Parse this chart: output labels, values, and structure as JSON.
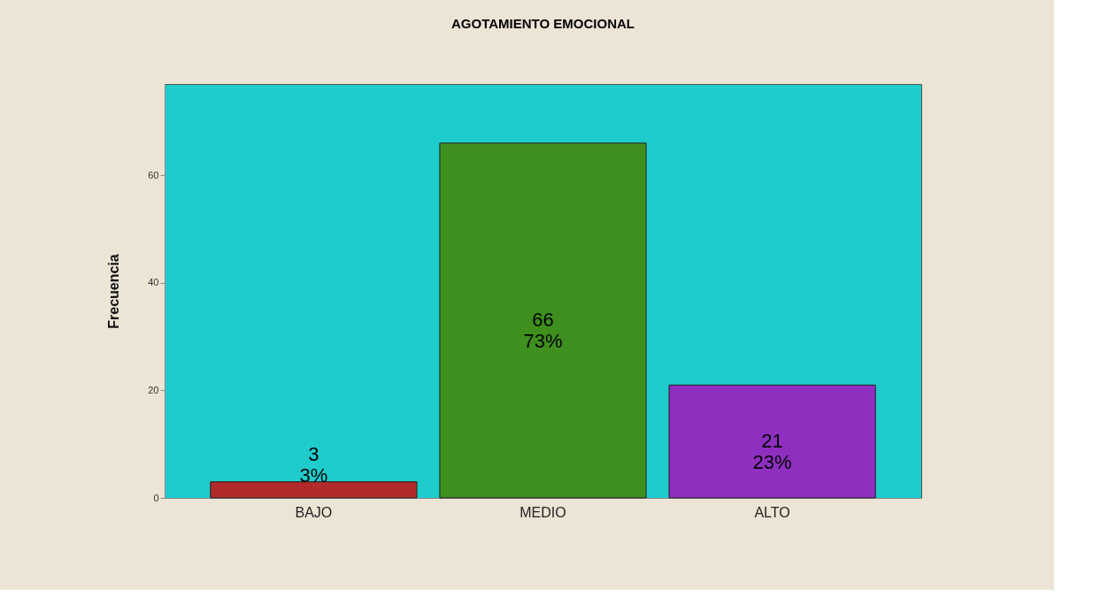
{
  "chart_data": {
    "type": "bar",
    "title": "AGOTAMIENTO EMOCIONAL",
    "ylabel": "Frecuencia",
    "categories": [
      "BAJO",
      "MEDIO",
      "ALTO"
    ],
    "values": [
      3,
      66,
      21
    ],
    "colors": [
      "#b22a2a",
      "#3f8f1f",
      "#8e2fc0"
    ],
    "value_labels": [
      "3\n3%",
      "66\n73%",
      "21\n23%"
    ],
    "ylim": [
      0,
      77
    ],
    "yticks": [
      0,
      20,
      40,
      60
    ],
    "grid": false
  }
}
